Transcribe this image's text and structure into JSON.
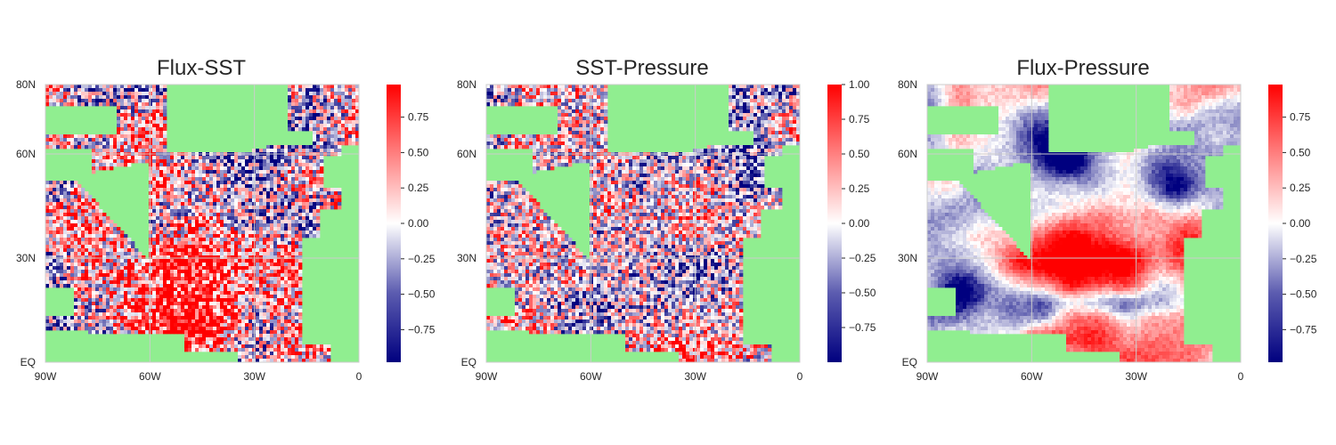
{
  "chart_data": [
    {
      "type": "heatmap",
      "title": "Flux-SST",
      "x_ticks": [
        {
          "value": -90,
          "label": "90W"
        },
        {
          "value": -60,
          "label": "60W"
        },
        {
          "value": -30,
          "label": "30W"
        },
        {
          "value": 0,
          "label": "0"
        }
      ],
      "y_ticks": [
        {
          "value": 0,
          "label": "EQ"
        },
        {
          "value": 30,
          "label": "30N"
        },
        {
          "value": 60,
          "label": "60N"
        },
        {
          "value": 80,
          "label": "80N"
        }
      ],
      "xlim": [
        -90,
        0
      ],
      "ylim": [
        0,
        80
      ],
      "colorbar": {
        "range": [
          -0.98,
          0.98
        ],
        "ticks": [
          -0.75,
          -0.5,
          -0.25,
          0.0,
          0.25,
          0.5,
          0.75
        ],
        "tick_labels": [
          "−0.75",
          "−0.50",
          "−0.25",
          "0.00",
          "0.25",
          "0.50",
          "0.75"
        ],
        "colormap": "bwr"
      },
      "pattern": "noisy correlation field, strong positive (red) values in central subtropical Atlantic 5N–45N, mixed blue/white in north and west",
      "grid": true
    },
    {
      "type": "heatmap",
      "title": "SST-Pressure",
      "x_ticks": [
        {
          "value": -90,
          "label": "90W"
        },
        {
          "value": -60,
          "label": "60W"
        },
        {
          "value": -30,
          "label": "30W"
        },
        {
          "value": 0,
          "label": "0"
        }
      ],
      "y_ticks": [
        {
          "value": 0,
          "label": "EQ"
        },
        {
          "value": 30,
          "label": "30N"
        },
        {
          "value": 60,
          "label": "60N"
        },
        {
          "value": 80,
          "label": "80N"
        }
      ],
      "xlim": [
        -90,
        0
      ],
      "ylim": [
        0,
        80
      ],
      "colorbar": {
        "range": [
          -1.0,
          1.0
        ],
        "ticks": [
          -0.75,
          -0.5,
          -0.25,
          0.0,
          0.25,
          0.5,
          0.75,
          1.0
        ],
        "tick_labels": [
          "−0.75",
          "−0.50",
          "−0.25",
          "0.00",
          "0.25",
          "0.50",
          "0.75",
          "1.00"
        ],
        "colormap": "bwr"
      },
      "pattern": "noisy field, mostly weak values; red patches in tropics near equator and Gulf Stream region, blue near 60N",
      "grid": true
    },
    {
      "type": "heatmap",
      "title": "Flux-Pressure",
      "x_ticks": [
        {
          "value": -90,
          "label": "90W"
        },
        {
          "value": -60,
          "label": "60W"
        },
        {
          "value": -30,
          "label": "30W"
        },
        {
          "value": 0,
          "label": "0"
        }
      ],
      "y_ticks": [
        {
          "value": 0,
          "label": "EQ"
        },
        {
          "value": 30,
          "label": "30N"
        },
        {
          "value": 60,
          "label": "60N"
        },
        {
          "value": 80,
          "label": "80N"
        }
      ],
      "xlim": [
        -90,
        0
      ],
      "ylim": [
        0,
        80
      ],
      "colorbar": {
        "range": [
          -0.98,
          0.98
        ],
        "ticks": [
          -0.75,
          -0.5,
          -0.25,
          0.0,
          0.25,
          0.5,
          0.75
        ],
        "tick_labels": [
          "−0.75",
          "−0.50",
          "−0.25",
          "0.00",
          "0.25",
          "0.50",
          "0.75"
        ],
        "colormap": "bwr"
      },
      "pattern": "smooth large-scale field: broad positive (red) over central subtropics 20N–45N and near 5N, negative (blue) bands near 15N–20N, 50N–60N and in the Caribbean",
      "grid": true
    }
  ],
  "colors": {
    "land": "#90ee90",
    "negative_max": "#00007f",
    "neutral": "#ffffff",
    "positive_max": "#ff0000",
    "grid": "#cccccc",
    "text": "#262626"
  }
}
